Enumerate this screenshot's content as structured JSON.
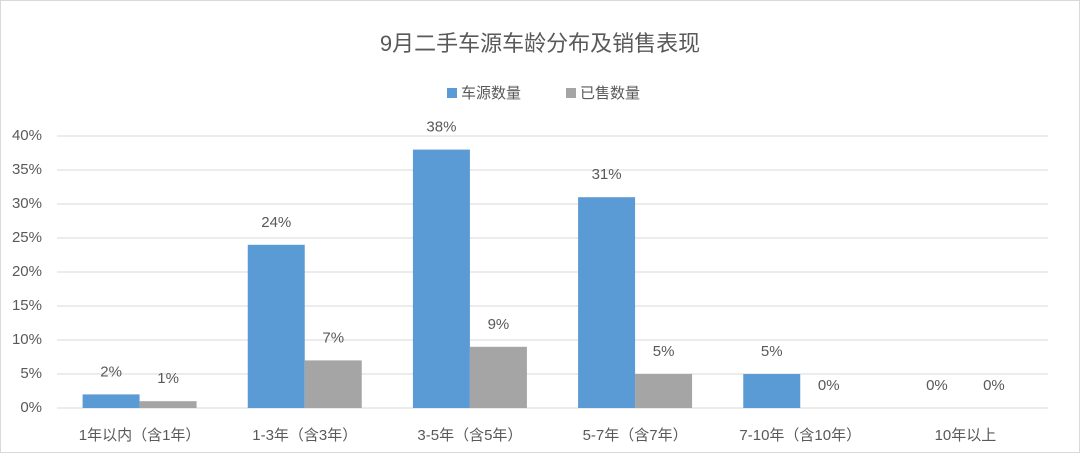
{
  "chart_data": {
    "type": "bar",
    "title": "9月二手车源车龄分布及销售表现",
    "categories": [
      "1年以内（含1年）",
      "1-3年（含3年）",
      "3-5年（含5年）",
      "5-7年（含7年）",
      "7-10年（含10年）",
      "10年以上"
    ],
    "series": [
      {
        "name": "车源数量",
        "color": "#5b9bd5",
        "values": [
          2,
          24,
          38,
          31,
          5,
          0
        ],
        "value_labels": [
          "2%",
          "24%",
          "38%",
          "31%",
          "5%",
          "0%"
        ]
      },
      {
        "name": "已售数量",
        "color": "#a5a5a5",
        "values": [
          1,
          7,
          9,
          5,
          0,
          0
        ],
        "value_labels": [
          "1%",
          "7%",
          "9%",
          "5%",
          "0%",
          "0%"
        ]
      }
    ],
    "ylim": [
      0,
      40
    ],
    "yticks": [
      {
        "value": 0,
        "label": "0%"
      },
      {
        "value": 5,
        "label": "5%"
      },
      {
        "value": 10,
        "label": "10%"
      },
      {
        "value": 15,
        "label": "15%"
      },
      {
        "value": 20,
        "label": "20%"
      },
      {
        "value": 25,
        "label": "25%"
      },
      {
        "value": 30,
        "label": "30%"
      },
      {
        "value": 35,
        "label": "35%"
      },
      {
        "value": 40,
        "label": "40%"
      }
    ],
    "grid": true,
    "legend": "top"
  }
}
